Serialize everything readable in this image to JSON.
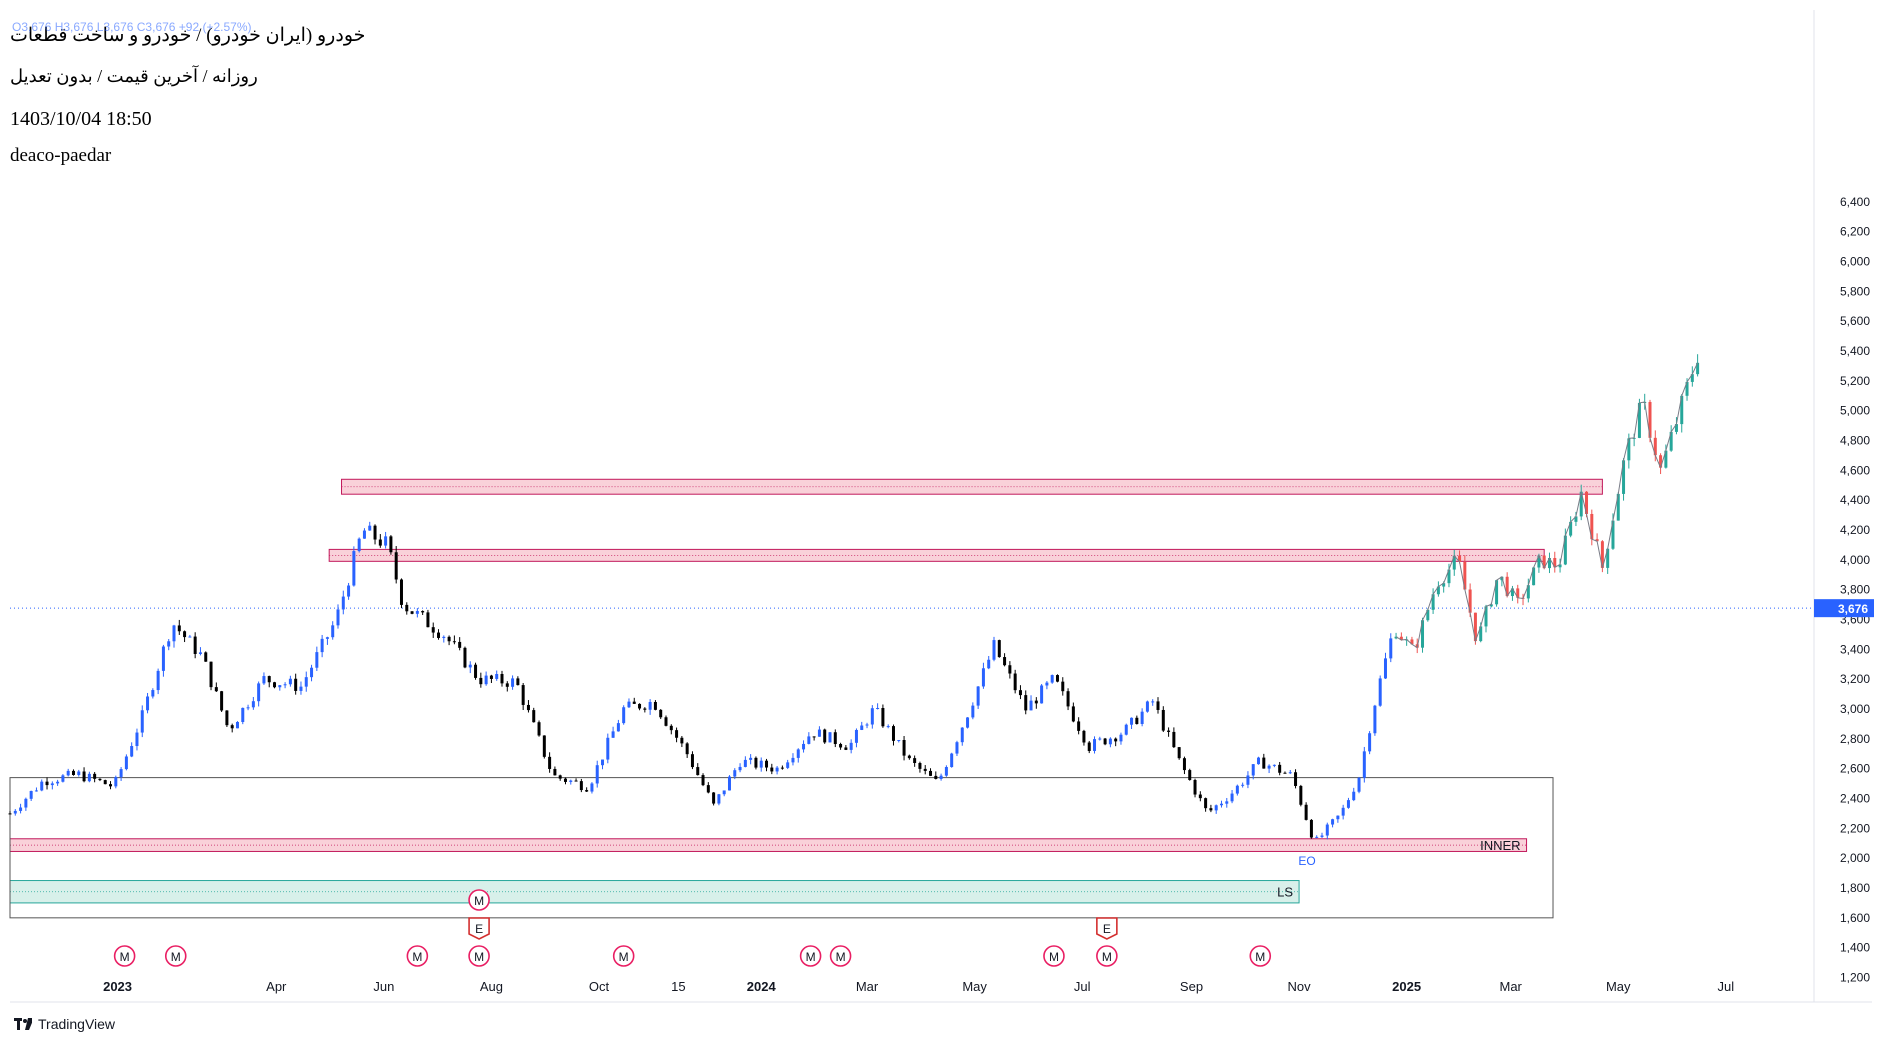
{
  "header": {
    "symbol_line": "خودرو (ایران خودرو) / خودرو و ساخت قطعات",
    "ohlc_text": "O3,676 H3,676 L3,676 C3,676 +92 (+2.57%)",
    "timeframe_line": "روزانه / آخرین قیمت / بدون تعدیل",
    "date_line": "1403/10/04 18:50",
    "author": "deaco-paedar"
  },
  "branding": {
    "logo_text": "TradingView"
  },
  "chart_data": {
    "type": "candlestick",
    "title": "خودرو (ایران خودرو) / خودرو و ساخت قطعات",
    "y_axis": {
      "min": 1100,
      "max": 6500,
      "ticks": [
        1200,
        1400,
        1600,
        1800,
        2000,
        2200,
        2400,
        2600,
        2800,
        3000,
        3200,
        3400,
        3600,
        3800,
        4000,
        4200,
        4400,
        4600,
        4800,
        5000,
        5200,
        5400,
        5600,
        5800,
        6000,
        6200,
        6400
      ],
      "side": "right"
    },
    "x_axis": {
      "range": [
        "2022-11-01",
        "2025-08-20"
      ],
      "ticks": [
        {
          "label": "2023",
          "date": "2023-01-01",
          "bold": true
        },
        {
          "label": "Apr",
          "date": "2023-04-01"
        },
        {
          "label": "Jun",
          "date": "2023-06-01"
        },
        {
          "label": "Aug",
          "date": "2023-08-01"
        },
        {
          "label": "Oct",
          "date": "2023-10-01"
        },
        {
          "label": "15",
          "date": "2023-11-15"
        },
        {
          "label": "2024",
          "date": "2024-01-01",
          "bold": true
        },
        {
          "label": "Mar",
          "date": "2024-03-01"
        },
        {
          "label": "May",
          "date": "2024-05-01"
        },
        {
          "label": "Jul",
          "date": "2024-07-01"
        },
        {
          "label": "Sep",
          "date": "2024-09-01"
        },
        {
          "label": "Nov",
          "date": "2024-11-01"
        },
        {
          "label": "2025",
          "date": "2025-01-01",
          "bold": true
        },
        {
          "label": "Mar",
          "date": "2025-03-01"
        },
        {
          "label": "May",
          "date": "2025-05-01"
        },
        {
          "label": "Jul",
          "date": "2025-07-01"
        }
      ]
    },
    "last_price": {
      "value": 3676,
      "label": "3,676"
    },
    "price_path": [
      {
        "date": "2022-11-01",
        "price": 2300
      },
      {
        "date": "2022-11-20",
        "price": 2520
      },
      {
        "date": "2022-12-10",
        "price": 2560
      },
      {
        "date": "2022-12-30",
        "price": 2480
      },
      {
        "date": "2023-01-15",
        "price": 2950
      },
      {
        "date": "2023-02-01",
        "price": 3580
      },
      {
        "date": "2023-02-18",
        "price": 3350
      },
      {
        "date": "2023-03-05",
        "price": 2860
      },
      {
        "date": "2023-03-25",
        "price": 3200
      },
      {
        "date": "2023-04-15",
        "price": 3150
      },
      {
        "date": "2023-05-05",
        "price": 3600
      },
      {
        "date": "2023-05-20",
        "price": 4200
      },
      {
        "date": "2023-06-03",
        "price": 4100
      },
      {
        "date": "2023-06-12",
        "price": 3700
      },
      {
        "date": "2023-07-05",
        "price": 3500
      },
      {
        "date": "2023-07-25",
        "price": 3200
      },
      {
        "date": "2023-08-15",
        "price": 3180
      },
      {
        "date": "2023-09-05",
        "price": 2550
      },
      {
        "date": "2023-09-25",
        "price": 2480
      },
      {
        "date": "2023-10-15",
        "price": 3000
      },
      {
        "date": "2023-11-01",
        "price": 3050
      },
      {
        "date": "2023-11-20",
        "price": 2700
      },
      {
        "date": "2023-12-05",
        "price": 2350
      },
      {
        "date": "2023-12-20",
        "price": 2650
      },
      {
        "date": "2024-01-10",
        "price": 2600
      },
      {
        "date": "2024-01-30",
        "price": 2850
      },
      {
        "date": "2024-02-20",
        "price": 2750
      },
      {
        "date": "2024-03-05",
        "price": 3000
      },
      {
        "date": "2024-03-25",
        "price": 2650
      },
      {
        "date": "2024-04-10",
        "price": 2500
      },
      {
        "date": "2024-04-28",
        "price": 3000
      },
      {
        "date": "2024-05-12",
        "price": 3420
      },
      {
        "date": "2024-05-30",
        "price": 3000
      },
      {
        "date": "2024-06-15",
        "price": 3200
      },
      {
        "date": "2024-07-05",
        "price": 2750
      },
      {
        "date": "2024-07-25",
        "price": 2850
      },
      {
        "date": "2024-08-10",
        "price": 3050
      },
      {
        "date": "2024-08-25",
        "price": 2650
      },
      {
        "date": "2024-09-10",
        "price": 2300
      },
      {
        "date": "2024-09-25",
        "price": 2450
      },
      {
        "date": "2024-10-10",
        "price": 2650
      },
      {
        "date": "2024-10-28",
        "price": 2550
      },
      {
        "date": "2024-11-10",
        "price": 2100
      },
      {
        "date": "2024-11-25",
        "price": 2300
      },
      {
        "date": "2024-12-05",
        "price": 2550
      },
      {
        "date": "2024-12-15",
        "price": 3100
      },
      {
        "date": "2024-12-25",
        "price": 3550
      },
      {
        "date": "2025-01-05",
        "price": 3380
      },
      {
        "date": "2025-01-18",
        "price": 3850
      },
      {
        "date": "2025-01-30",
        "price": 4000
      },
      {
        "date": "2025-02-10",
        "price": 3450
      },
      {
        "date": "2025-02-22",
        "price": 3900
      },
      {
        "date": "2025-03-05",
        "price": 3700
      },
      {
        "date": "2025-03-18",
        "price": 4000
      },
      {
        "date": "2025-03-28",
        "price": 3960
      },
      {
        "date": "2025-04-10",
        "price": 4450
      },
      {
        "date": "2025-04-22",
        "price": 3950
      },
      {
        "date": "2025-05-05",
        "price": 4700
      },
      {
        "date": "2025-05-15",
        "price": 5050
      },
      {
        "date": "2025-05-25",
        "price": 4600
      },
      {
        "date": "2025-06-05",
        "price": 5000
      },
      {
        "date": "2025-06-15",
        "price": 5380
      }
    ],
    "candle_colors": {
      "historical_up": "#2962ff",
      "historical_down": "#000000",
      "projected_up": "#26a69a",
      "projected_down": "#ef5350",
      "projection_line": "#787b86"
    },
    "zones": [
      {
        "name": "resistance-high",
        "start": "2023-05-08",
        "end": "2025-04-22",
        "low": 4440,
        "high": 4540,
        "fill": "#f8c9d2",
        "border": "#c2185b",
        "label": ""
      },
      {
        "name": "resistance-mid",
        "start": "2023-05-01",
        "end": "2025-03-20",
        "low": 3990,
        "high": 4070,
        "fill": "#f8c9d2",
        "border": "#c2185b",
        "label": ""
      },
      {
        "name": "inner-zone",
        "start": "2022-11-01",
        "end": "2025-03-10",
        "low": 2045,
        "high": 2130,
        "fill": "#f8c9d2",
        "border": "#c2185b",
        "label": "INNER"
      },
      {
        "name": "ls-zone",
        "start": "2022-11-01",
        "end": "2024-11-01",
        "low": 1700,
        "high": 1850,
        "fill": "#d1ede6",
        "border": "#26a69a",
        "label": "LS"
      },
      {
        "name": "range-box",
        "start": "2022-11-01",
        "end": "2025-03-25",
        "low": 1600,
        "high": 2540,
        "fill": "none",
        "border": "#555555",
        "label": ""
      }
    ],
    "annotations": [
      {
        "text": "EO",
        "date": "2024-11-01",
        "price": 1980
      }
    ],
    "event_markers": [
      {
        "type": "M",
        "date": "2023-01-05",
        "row": 0
      },
      {
        "type": "M",
        "date": "2023-02-03",
        "row": 0
      },
      {
        "type": "M",
        "date": "2023-06-20",
        "row": 0
      },
      {
        "type": "M",
        "date": "2023-07-25",
        "row": 0
      },
      {
        "type": "E",
        "date": "2023-07-25",
        "row": 1
      },
      {
        "type": "M",
        "date": "2023-07-25",
        "row": 2
      },
      {
        "type": "M",
        "date": "2023-10-15",
        "row": 0
      },
      {
        "type": "M",
        "date": "2024-01-29",
        "row": 0
      },
      {
        "type": "M",
        "date": "2024-02-15",
        "row": 0
      },
      {
        "type": "M",
        "date": "2024-06-15",
        "row": 0
      },
      {
        "type": "M",
        "date": "2024-07-15",
        "row": 0
      },
      {
        "type": "E",
        "date": "2024-07-15",
        "row": 1
      },
      {
        "type": "M",
        "date": "2024-10-10",
        "row": 0
      }
    ]
  }
}
